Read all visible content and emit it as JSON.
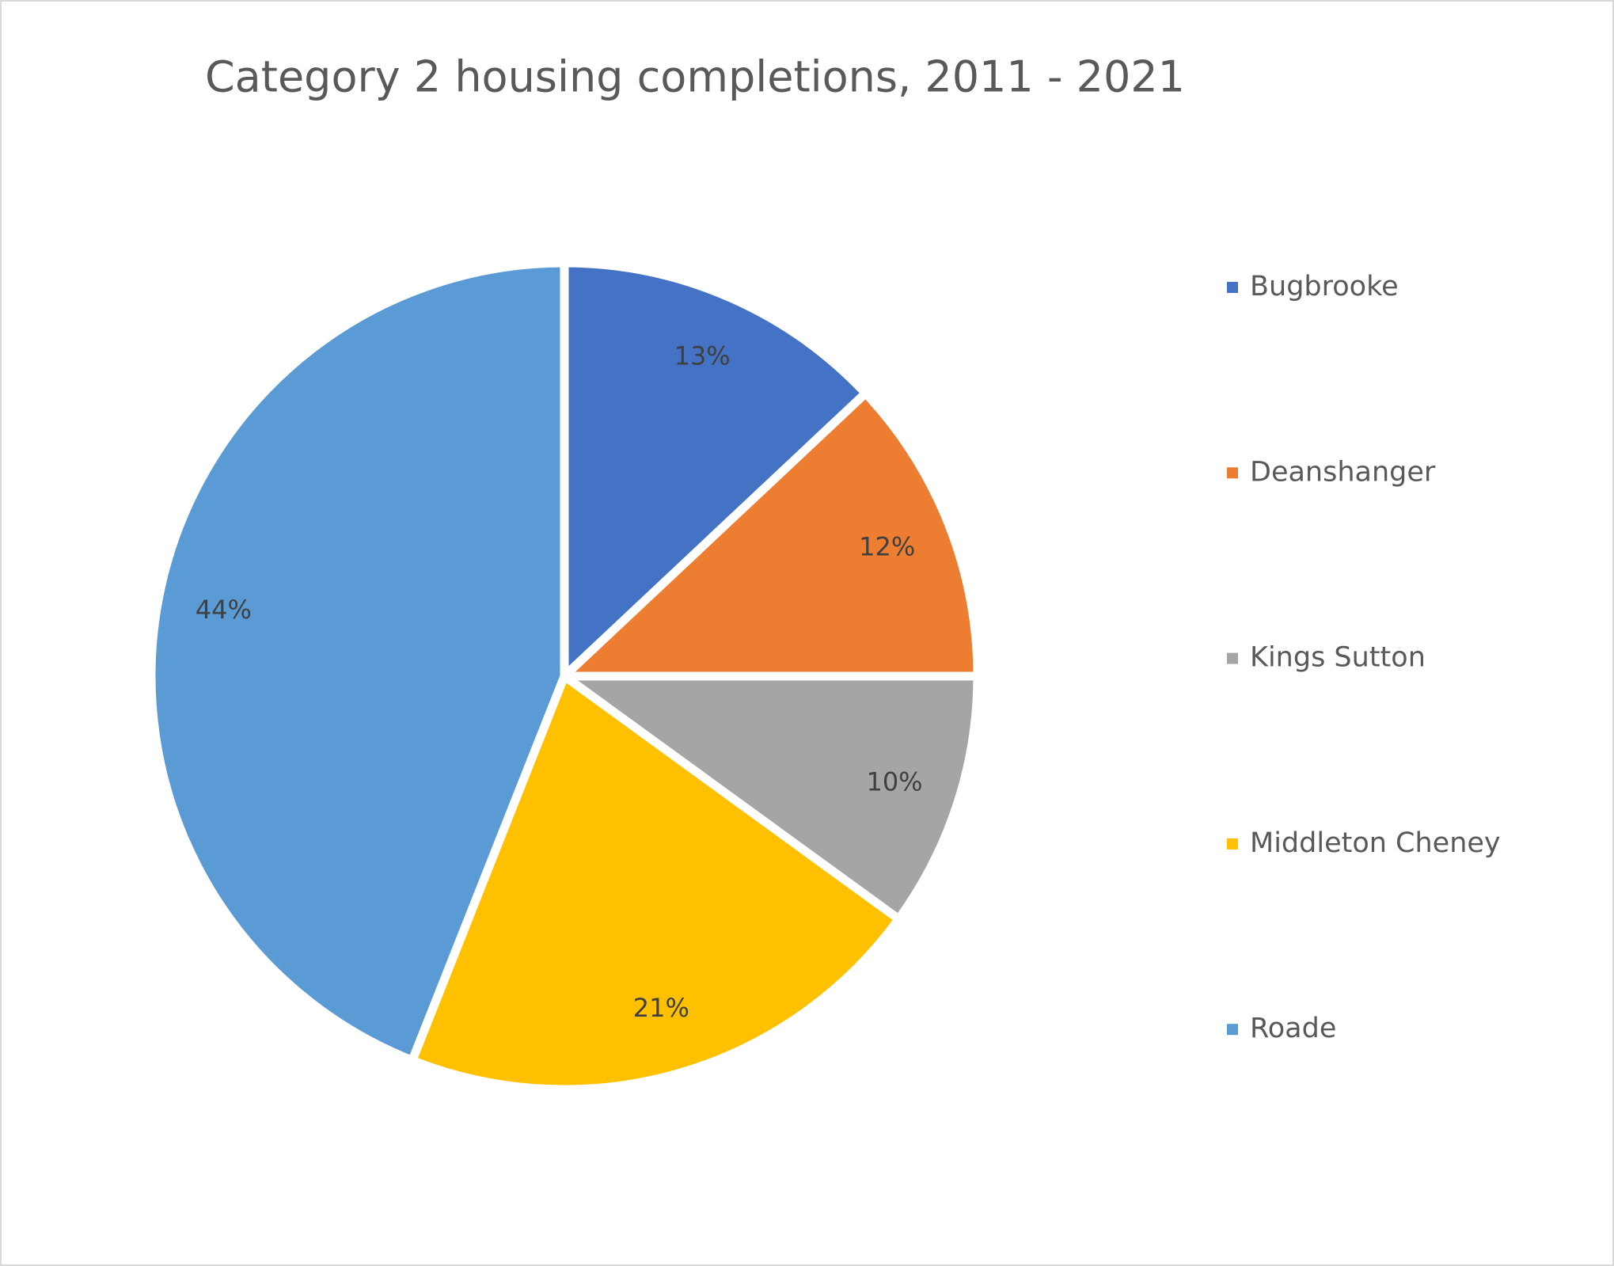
{
  "chart_data": {
    "type": "pie",
    "title": "Category 2 housing completions, 2011 - 2021",
    "categories": [
      "Bugbrooke",
      "Deanshanger",
      "Kings Sutton",
      "Middleton Cheney",
      "Roade"
    ],
    "values": [
      13,
      12,
      10,
      21,
      44
    ],
    "value_labels": [
      "13%",
      "12%",
      "10%",
      "21%",
      "44%"
    ],
    "colors": [
      "#4472c4",
      "#ed7d31",
      "#a5a5a5",
      "#ffc000",
      "#5b9bd5"
    ],
    "legend": "right"
  }
}
